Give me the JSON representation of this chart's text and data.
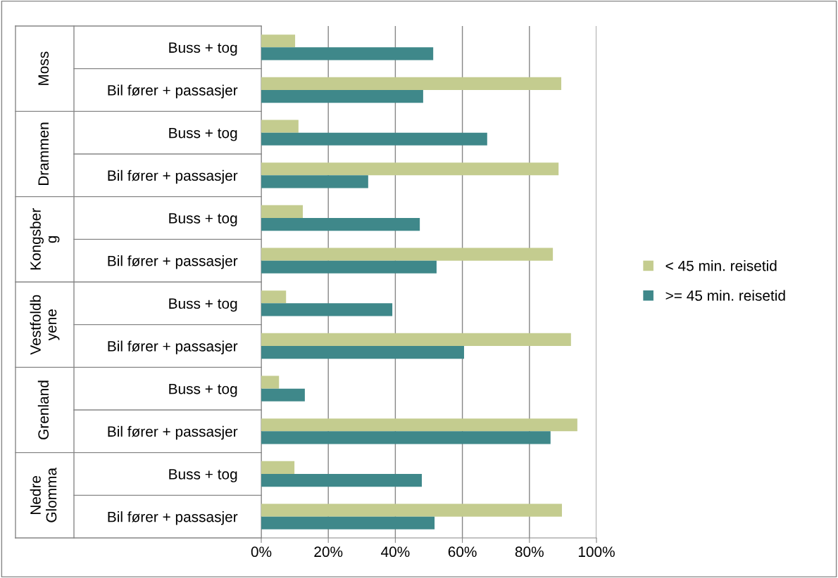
{
  "chart_data": {
    "type": "bar",
    "orientation": "horizontal",
    "categories": [
      "Buss + tog",
      "Bil fører + passasjer",
      "Buss + tog",
      "Bil fører + passasjer",
      "Buss + tog",
      "Bil fører + passasjer",
      "Buss + tog",
      "Bil fører + passasjer",
      "Buss + tog",
      "Bil fører + passasjer",
      "Buss + tog",
      "Bil fører + passasjer"
    ],
    "series": [
      {
        "name": "< 45 min. reisetid",
        "color": "#c4cc8f",
        "values": [
          10.1,
          89.5,
          11.1,
          88.7,
          12.4,
          87.0,
          7.4,
          92.4,
          5.3,
          94.3,
          9.9,
          89.7
        ]
      },
      {
        "name": ">= 45 min. reisetid",
        "color": "#3f888a",
        "values": [
          51.3,
          48.3,
          67.4,
          31.9,
          47.3,
          52.3,
          39.1,
          60.5,
          13.0,
          86.3,
          47.9,
          51.7
        ]
      }
    ],
    "annotations": [
      "Moss",
      "Drammen",
      "Kongsber\ng",
      "Vestfoldb\nyene",
      "Grenland",
      "Nedre\nGlomma"
    ],
    "xlim": [
      0,
      100
    ],
    "xticks": [
      {
        "value": 0,
        "label": "0%"
      },
      {
        "value": 20,
        "label": "20%"
      },
      {
        "value": 40,
        "label": "40%"
      },
      {
        "value": 60,
        "label": "60%"
      },
      {
        "value": 80,
        "label": "80%"
      },
      {
        "value": 100,
        "label": "100%"
      }
    ],
    "grid": "x",
    "legend": "right"
  }
}
